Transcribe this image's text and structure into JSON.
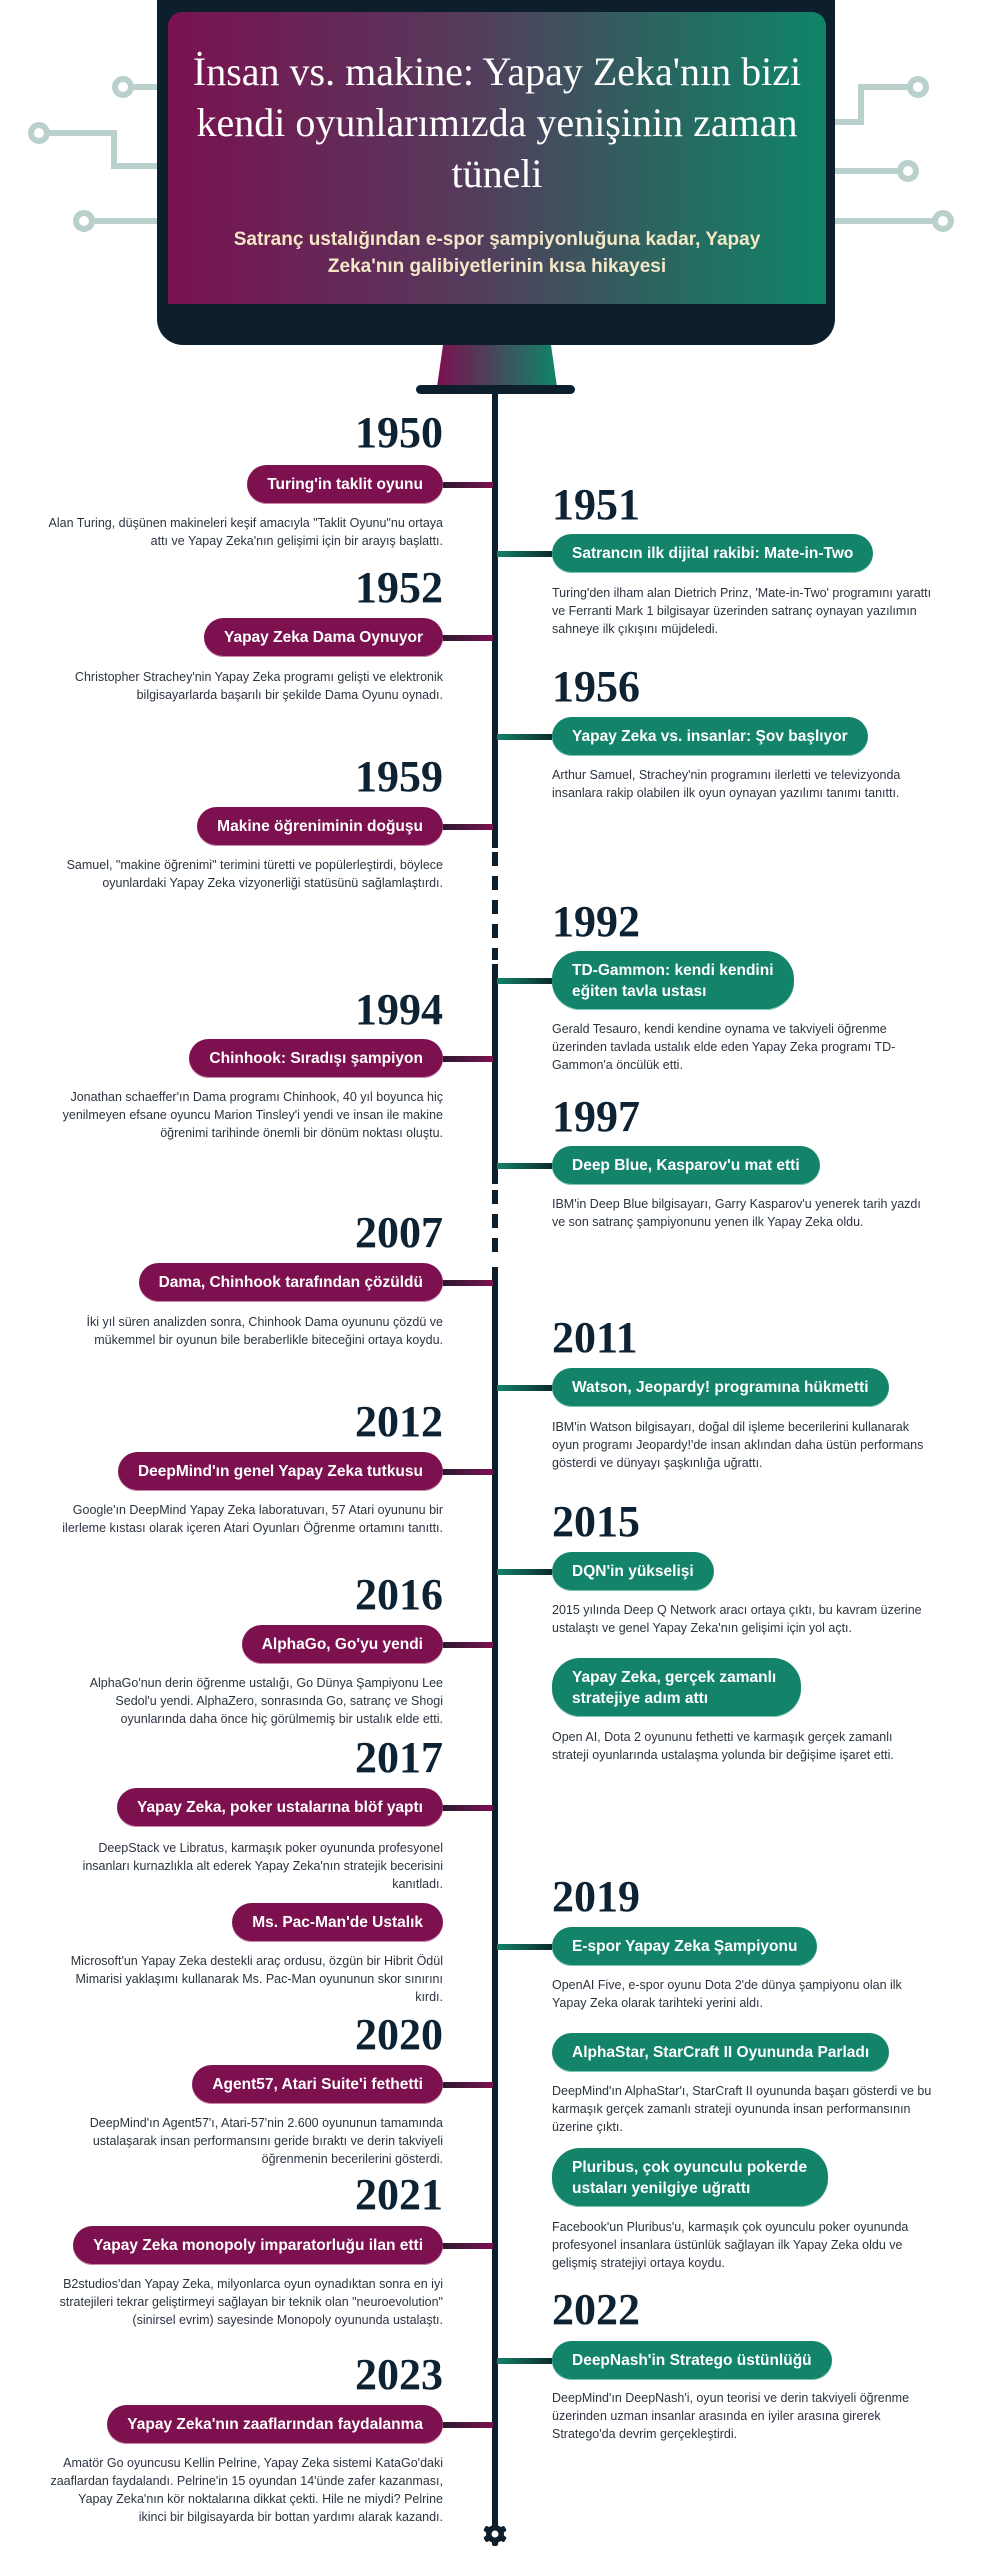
{
  "header": {
    "title": "İnsan vs. makine: Yapay Zeka'nın bizi kendi oyunlarımızda yenişinin zaman tüneli",
    "subtitle": "Satranç ustalığından e-spor şampiyonluğuna kadar, Yapay Zeka'nın galibiyetlerinin kısa hikayesi"
  },
  "colors": {
    "human_side": "#7d1150",
    "ai_side": "#13836a",
    "dark": "#0d1f2d",
    "subtitle": "#f3e7c6",
    "circuit": "#b9d0cd"
  },
  "timeline_end_icon": "gear-icon",
  "events": [
    {
      "side": "left",
      "year": "1950",
      "title": "Turing'in taklit oyunu",
      "description": "Alan Turing, düşünen makineleri keşif amacıyla \"Taklit Oyunu\"nu ortaya attı ve Yapay Zeka'nın gelişimi için bir arayış başlattı."
    },
    {
      "side": "right",
      "year": "1951",
      "title": "Satrancın ilk dijital rakibi: Mate-in-Two",
      "description": "Turing'den ilham alan Dietrich Prinz, 'Mate-in-Two' programını yarattı ve Ferranti Mark 1 bilgisayar üzerinden satranç oynayan yazılımın sahneye ilk çıkışını müjdeledi."
    },
    {
      "side": "left",
      "year": "1952",
      "title": "Yapay Zeka Dama Oynuyor",
      "description": "Christopher Strachey'nin Yapay Zeka programı gelişti ve elektronik bilgisayarlarda başarılı bir şekilde Dama Oyunu oynadı."
    },
    {
      "side": "right",
      "year": "1956",
      "title": "Yapay Zeka vs. insanlar: Şov başlıyor",
      "description": "Arthur Samuel, Strachey'nin programını ilerletti ve televizyonda insanlara rakip olabilen ilk oyun oynayan yazılımı tanımı tanıttı."
    },
    {
      "side": "left",
      "year": "1959",
      "title": "Makine öğreniminin doğuşu",
      "description": "Samuel, \"makine öğrenimi\" terimini türetti ve popülerleştirdi, böylece oyunlardaki Yapay Zeka vizyonerliği statüsünü sağlamlaştırdı."
    },
    {
      "side": "right",
      "year": "1992",
      "title": "TD-Gammon: kendi kendini eğiten tavla ustası",
      "description": "Gerald Tesauro, kendi kendine oynama ve takviyeli öğrenme üzerinden tavlada ustalık elde eden Yapay Zeka programı TD-Gammon'a öncülük etti."
    },
    {
      "side": "left",
      "year": "1994",
      "title": "Chinhook: Sıradışı şampiyon",
      "description": "Jonathan schaeffer'ın Dama programı Chinhook, 40 yıl boyunca hiç yenilmeyen efsane oyuncu Marion Tinsley'i yendi ve insan ile makine öğrenimi tarihinde önemli bir dönüm noktası oluştu."
    },
    {
      "side": "right",
      "year": "1997",
      "title": "Deep Blue, Kasparov'u mat etti",
      "description": "IBM'in Deep Blue bilgisayarı, Garry Kasparov'u yenerek tarih yazdı ve son satranç şampiyonunu yenen ilk Yapay Zeka oldu."
    },
    {
      "side": "left",
      "year": "2007",
      "title": "Dama, Chinhook tarafından çözüldü",
      "description": "İki yıl süren analizden sonra, Chinhook Dama oyununu çözdü ve mükemmel bir oyunun bile beraberlikle biteceğini ortaya koydu."
    },
    {
      "side": "right",
      "year": "2011",
      "title": "Watson, Jeopardy! programına hükmetti",
      "description": "IBM'in Watson bilgisayarı, doğal dil işleme becerilerini kullanarak oyun programı Jeopardy!'de insan aklından daha üstün performans gösterdi ve dünyayı şaşkınlığa uğrattı."
    },
    {
      "side": "left",
      "year": "2012",
      "title": "DeepMind'ın genel Yapay Zeka tutkusu",
      "description": "Google'ın DeepMind Yapay Zeka laboratuvarı, 57 Atari oyununu bir ilerleme kıstası olarak içeren Atari Oyunları Öğrenme ortamını tanıttı."
    },
    {
      "side": "right",
      "year": "2015",
      "title": "DQN'in yükselişi",
      "description": "2015 yılında Deep Q Network aracı ortaya çıktı, bu kavram üzerine ustalaştı ve genel Yapay Zeka'nın gelişimi için yol açtı."
    },
    {
      "side": "left",
      "year": "2016",
      "title": "AlphaGo, Go'yu yendi",
      "description": "AlphaGo'nun derin öğrenme ustalığı, Go Dünya Şampiyonu Lee Sedol'u yendi. AlphaZero, sonrasında Go, satranç ve Shogi oyunlarında daha önce hiç görülmemiş bir ustalık elde etti."
    },
    {
      "side": "right",
      "year": "",
      "title": "Yapay Zeka, gerçek zamanlı stratejiye adım attı",
      "description": "Open AI, Dota 2 oyununu fethetti ve karmaşık gerçek zamanlı strateji oyunlarında ustalaşma yolunda bir değişime işaret etti."
    },
    {
      "side": "left",
      "year": "2017",
      "title": "Yapay Zeka, poker ustalarına blöf yaptı",
      "description": "DeepStack ve Libratus, karmaşık poker oyununda profesyonel insanları kurnazlıkla alt ederek Yapay Zeka'nın stratejik becerisini kanıtladı."
    },
    {
      "side": "left",
      "year": "",
      "title": "Ms. Pac-Man'de Ustalık",
      "description": "Microsoft'un Yapay Zeka destekli araç ordusu, özgün bir Hibrit Ödül Mimarisi yaklaşımı kullanarak Ms. Pac-Man oyununun skor sınırını kırdı."
    },
    {
      "side": "right",
      "year": "2019",
      "title": "E-spor Yapay Zeka Şampiyonu",
      "description": "OpenAI Five, e-spor oyunu Dota 2'de dünya şampiyonu olan ilk Yapay Zeka olarak tarihteki yerini aldı."
    },
    {
      "side": "left",
      "year": "2020",
      "title": "Agent57, Atari Suite'i fethetti",
      "description": "DeepMind'ın Agent57'ı, Atari-57'nin 2.600 oyununun tamamında ustalaşarak insan performansını geride bıraktı ve derin takviyeli öğrenmenin becerilerini gösterdi."
    },
    {
      "side": "right",
      "year": "",
      "title": "AlphaStar, StarCraft II Oyununda Parladı",
      "description": "DeepMind'ın AlphaStar'ı, StarCraft II oyununda başarı gösterdi ve bu karmaşık gerçek zamanlı strateji oyununda insan performansının üzerine çıktı."
    },
    {
      "side": "right",
      "year": "",
      "title": "Pluribus, çok oyunculu pokerde ustaları yenilgiye uğrattı",
      "description": "Facebook'un Pluribus'u, karmaşık çok oyunculu poker oyununda profesyonel insanlara üstünlük sağlayan ilk Yapay Zeka oldu ve gelişmiş stratejiyi ortaya koydu."
    },
    {
      "side": "left",
      "year": "2021",
      "title": "Yapay Zeka monopoly imparatorluğu ilan etti",
      "description": "B2studios'dan Yapay Zeka, milyonlarca oyun oynadıktan sonra en iyi stratejileri tekrar geliştirmeyi sağlayan bir teknik olan \"neuroevolution\" (sinirsel evrim) sayesinde Monopoly oyununda ustalaştı."
    },
    {
      "side": "right",
      "year": "2022",
      "title": "DeepNash'in Stratego üstünlüğü",
      "description": "DeepMind'ın DeepNash'i, oyun teorisi ve derin takviyeli öğrenme üzerinden uzman insanlar arasında en iyiler arasına girerek Stratego'da devrim gerçekleştirdi."
    },
    {
      "side": "left",
      "year": "2023",
      "title": "Yapay Zeka'nın zaaflarından faydalanma",
      "description": "Amatör Go oyuncusu Kellin Pelrine, Yapay Zeka sistemi KataGo'daki zaaflardan faydalandı. Pelrine'in 15 oyundan 14'ünde zafer kazanması, Yapay Zeka'nın kör noktalarına dikkat çekti. Hile ne miydi? Pelrine ikinci bir bilgisayarda bir bottan yardımı alarak kazandı."
    }
  ]
}
